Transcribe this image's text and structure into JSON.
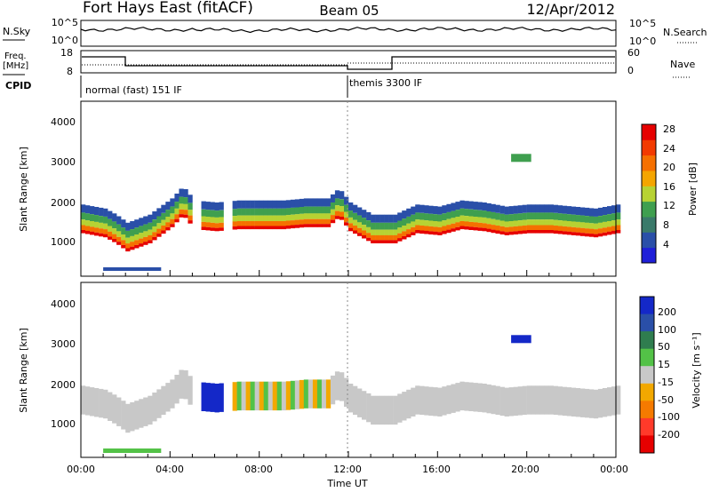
{
  "header": {
    "station": "Fort Hays East (fitACF)",
    "beam": "Beam 05",
    "date": "12/Apr/2012"
  },
  "noise_panel": {
    "left_label": "N.Sky",
    "left_ticks": [
      "10^5",
      "10^0"
    ],
    "right_label": "N.Search",
    "right_ticks": [
      "10^5",
      "10^0"
    ]
  },
  "freq_panel": {
    "left_label_line1": "Freq.",
    "left_label_line2": "[MHz]",
    "left_ticks": [
      "18",
      "8"
    ],
    "right_label": "Nave",
    "right_ticks": [
      "60",
      "0"
    ]
  },
  "cpid_panel": {
    "label": "CPID",
    "modes": [
      {
        "start_hour": 0,
        "name": "normal (fast) 151 IF"
      },
      {
        "start_hour": 12,
        "name": "themis 3300 IF"
      }
    ]
  },
  "power_panel": {
    "ylabel": "Slant Range [km]",
    "yticks": [
      "4000",
      "3000",
      "2000",
      "1000"
    ],
    "colorbar_label": "Power [dB]",
    "colorbar_ticks": [
      "28",
      "24",
      "20",
      "16",
      "12",
      "8",
      "4"
    ],
    "colors": [
      "#1f1fd8",
      "#2a4fa8",
      "#3a7a6a",
      "#3f9f4f",
      "#b7d233",
      "#f4a500",
      "#f57000",
      "#f23a00",
      "#e60000"
    ]
  },
  "velocity_panel": {
    "ylabel": "Slant Range [km]",
    "yticks": [
      "4000",
      "3000",
      "2000",
      "1000"
    ],
    "colorbar_label": "Velocity [m s⁻¹]",
    "colorbar_ticks": [
      "200",
      "100",
      "50",
      "15",
      "-15",
      "-50",
      "-100",
      "-200"
    ],
    "colors": [
      "#1428c8",
      "#2a4fa8",
      "#2f7d4f",
      "#53c247",
      "#c8c8c8",
      "#f2a800",
      "#f57a00",
      "#ff3a2a",
      "#e60000"
    ]
  },
  "time_axis": {
    "ticks": [
      "00:00",
      "04:00",
      "08:00",
      "12:00",
      "16:00",
      "20:00",
      "00:00"
    ],
    "label": "Time UT"
  },
  "chart_data": {
    "type": "heatmap",
    "x_range_hours": [
      0,
      24
    ],
    "y_range_km": [
      180,
      4500
    ],
    "power_echo_band_km": {
      "hours": [
        0,
        1,
        1.5,
        2,
        3,
        4,
        4.5,
        5,
        6,
        7,
        8,
        9,
        10,
        11,
        11.5,
        12,
        13,
        14,
        15,
        16,
        17,
        18,
        19,
        20,
        21,
        22,
        23,
        24
      ],
      "center": [
        1500,
        1400,
        1250,
        1050,
        1250,
        1650,
        1950,
        1600,
        1550,
        1600,
        1600,
        1600,
        1650,
        1650,
        1900,
        1550,
        1250,
        1250,
        1500,
        1450,
        1600,
        1550,
        1450,
        1500,
        1500,
        1450,
        1400,
        1500
      ]
    },
    "cpid_change_hour": 12
  }
}
